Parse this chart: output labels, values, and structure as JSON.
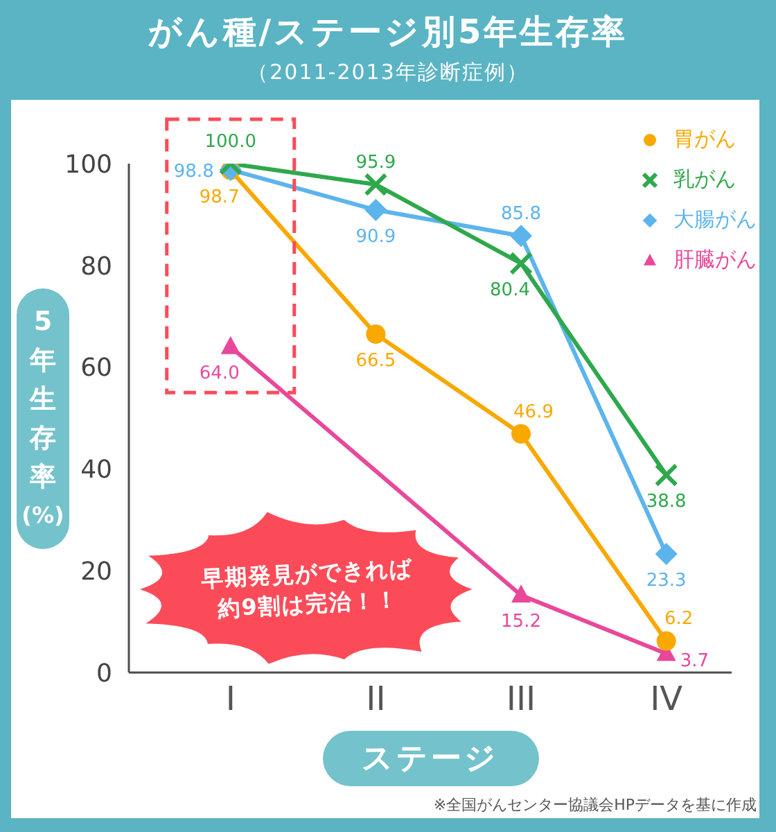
{
  "chart_data": {
    "type": "line",
    "title": "がん種/ステージ別5年生存率",
    "subtitle": "（2011-2013年診断症例）",
    "xlabel": "ステージ",
    "ylabel": "5年生存率(%)",
    "categories": [
      "I",
      "II",
      "III",
      "IV"
    ],
    "series": [
      {
        "name": "胃がん",
        "color": "#f9a800",
        "marker": "circle",
        "values": [
          98.7,
          66.5,
          46.9,
          6.2
        ],
        "value_labels": [
          "98.7",
          "66.5",
          "46.9",
          "6.2"
        ]
      },
      {
        "name": "乳がん",
        "color": "#2ea84c",
        "marker": "cross",
        "values": [
          100.0,
          95.9,
          80.4,
          38.8
        ],
        "value_labels": [
          "100.0",
          "95.9",
          "80.4",
          "38.8"
        ]
      },
      {
        "name": "大腸がん",
        "color": "#5cb4ec",
        "marker": "diamond",
        "values": [
          98.8,
          90.9,
          85.8,
          23.3
        ],
        "value_labels": [
          "98.8",
          "90.9",
          "85.8",
          "23.3"
        ]
      },
      {
        "name": "肝臓がん",
        "color": "#e8489a",
        "marker": "triangle",
        "values": [
          64.0,
          null,
          15.2,
          3.7
        ],
        "value_labels": [
          "64.0",
          null,
          "15.2",
          "3.7"
        ]
      }
    ],
    "ylim": [
      0,
      100
    ],
    "yticks": [
      0,
      20,
      40,
      60,
      80,
      100
    ],
    "grid": false,
    "legend": "top right",
    "annotations": [
      "早期発見ができれば約9割は完治！！",
      "※全国がんセンター協議会HPデータを基に作成"
    ]
  }
}
